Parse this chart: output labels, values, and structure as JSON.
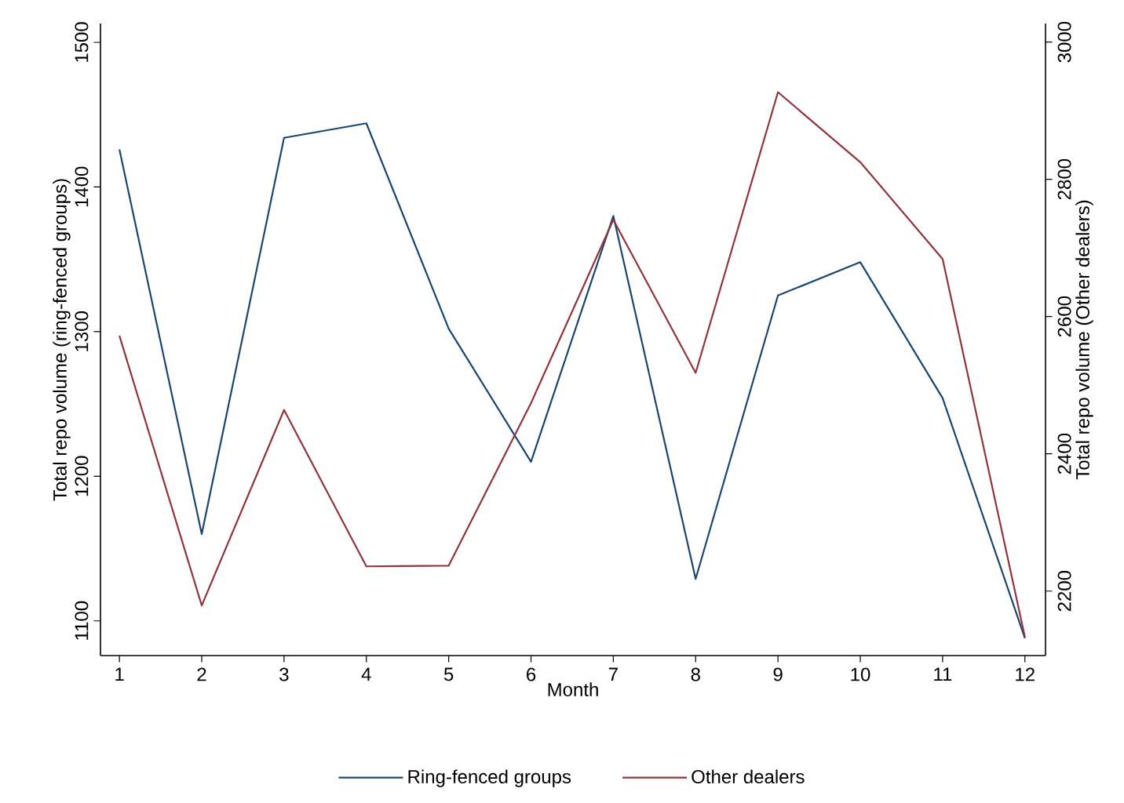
{
  "chart_data": {
    "type": "line",
    "xlabel": "Month",
    "ylabel": "Total repo volume (ring-fenced groups)",
    "y2label": "Total repo volume (Other dealers)",
    "x": [
      1,
      2,
      3,
      4,
      5,
      6,
      7,
      8,
      9,
      10,
      11,
      12
    ],
    "xlim": [
      0.77,
      12.25
    ],
    "xticks": [
      1,
      2,
      3,
      4,
      5,
      6,
      7,
      8,
      9,
      10,
      11,
      12
    ],
    "ylim": [
      1076,
      1513
    ],
    "yticks": [
      1100,
      1200,
      1300,
      1400,
      1500
    ],
    "y2lim": [
      2106,
      3027
    ],
    "y2ticks": [
      2200,
      2400,
      2600,
      2800,
      3000
    ],
    "legend": "bottom",
    "grid": false,
    "series": [
      {
        "name": "Ring-fenced groups",
        "color": "#1a476f",
        "values": [
          1426,
          1160,
          1434,
          1444,
          1302,
          1210,
          1380,
          1129,
          1325,
          1348,
          1254,
          1088
        ]
      },
      {
        "name": "Other dealers",
        "color": "#90353b",
        "axis": "y2",
        "values": [
          2572,
          2179,
          2464,
          2236,
          2237,
          2474,
          2741,
          2518,
          2927,
          2825,
          2684,
          2133
        ]
      }
    ]
  }
}
